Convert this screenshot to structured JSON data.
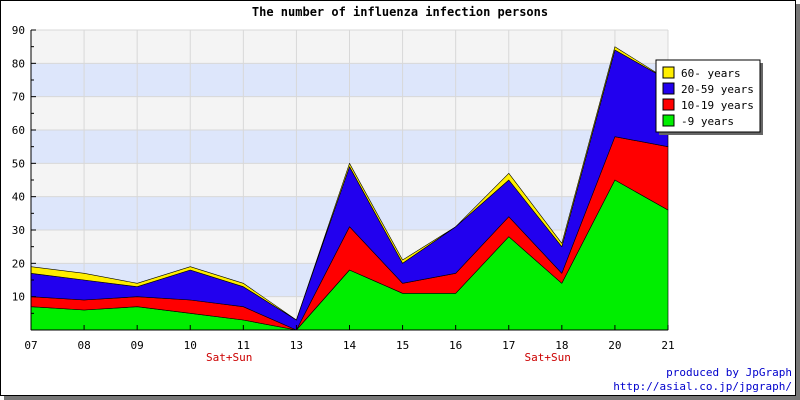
{
  "chart_data": {
    "type": "area",
    "stacked": true,
    "title": "The number of influenza infection persons",
    "xlabel": "",
    "ylabel": "",
    "categories": [
      "07",
      "08",
      "09",
      "10",
      "11",
      "13",
      "14",
      "15",
      "16",
      "17",
      "18",
      "20",
      "21"
    ],
    "x_annotations": [
      {
        "category": "09",
        "text": "Sat+Sun"
      },
      {
        "category": "16",
        "text": "Sat+Sun"
      }
    ],
    "series": [
      {
        "name": "-9 years",
        "color": "#00ee00",
        "values": [
          7,
          6,
          7,
          5,
          3,
          0,
          18,
          11,
          11,
          28,
          14,
          45,
          36
        ]
      },
      {
        "name": "10-19 years",
        "color": "#ff0000",
        "values": [
          3,
          3,
          3,
          4,
          4,
          0,
          13,
          3,
          6,
          6,
          3,
          13,
          19
        ]
      },
      {
        "name": "20-59 years",
        "color": "#2200ee",
        "values": [
          7,
          6,
          3,
          9,
          6,
          3,
          18,
          6,
          14,
          11,
          8,
          26,
          20
        ]
      },
      {
        "name": "60- years",
        "color": "#ffee00",
        "values": [
          2,
          2,
          1,
          1,
          1,
          0,
          1,
          1,
          0,
          2,
          1,
          1,
          0
        ]
      }
    ],
    "ylim": [
      0,
      90
    ],
    "yticks": [
      10,
      20,
      30,
      40,
      50,
      60,
      70,
      80,
      90
    ],
    "grid": true,
    "band_colors": [
      "#f4f4f4",
      "#dde6fb"
    ],
    "legend_position": "top-right"
  },
  "footer": {
    "credit_line1": "produced by JpGraph",
    "credit_line2": "http://asial.co.jp/jpgraph/"
  }
}
